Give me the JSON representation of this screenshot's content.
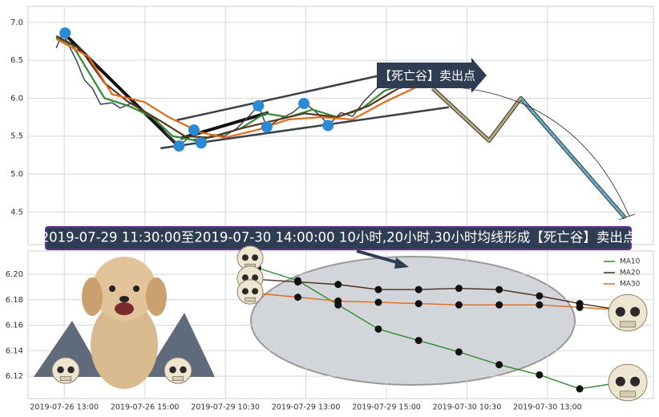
{
  "caption": "2019-07-29 11:30:00至2019-07-30 14:00:00 10小时,20小时,30小时均线形成【死亡谷】卖出点",
  "chart_data": [
    {
      "type": "line",
      "annotation": "【死亡谷】卖出点",
      "xlim": [
        -0.9,
        14.63
      ],
      "ylim": [
        4.07,
        7.21
      ],
      "yticks": [
        4.5,
        {
          "value": 5,
          "label": "5.0"
        },
        5.5,
        {
          "value": 6,
          "label": "6.0"
        },
        6.5,
        {
          "value": 7,
          "label": "7.0"
        }
      ],
      "grid": true,
      "series": [
        {
          "color": "#3b4454",
          "x": [
            -0.2,
            -0.04,
            0.1,
            0.3,
            0.5,
            0.7,
            0.9,
            1.19,
            1.39,
            1.69,
            1.99,
            2.29,
            2.59,
            2.83,
            3.08,
            3.38,
            3.68,
            3.98,
            4.28,
            4.58,
            4.82,
            5.03,
            5.37,
            5.67,
            5.97,
            6.27,
            6.57,
            6.87,
            7.16,
            7.46,
            7.76,
            8.06,
            8.36,
            8.66,
            8.96,
            9.25
          ],
          "values": [
            6.66,
            6.87,
            6.71,
            6.5,
            6.24,
            6.13,
            5.92,
            5.94,
            5.87,
            5.94,
            5.81,
            5.71,
            5.5,
            5.37,
            5.47,
            5.41,
            5.52,
            5.5,
            5.6,
            5.76,
            5.9,
            5.62,
            5.73,
            5.81,
            5.94,
            5.81,
            5.65,
            5.81,
            5.76,
            5.97,
            6.13,
            6.18,
            6.13,
            6.24,
            6.24,
            6.08
          ]
        },
        {
          "color": "#2e8b2e",
          "x": [
            -0.2,
            0.2,
            0.6,
            1,
            1.59,
            2.19,
            2.69,
            3.18,
            3.78,
            4.38,
            4.98,
            5.57,
            6.17,
            6.77,
            7.36,
            7.96,
            8.56,
            9.15
          ],
          "values": [
            6.8,
            6.7,
            6.35,
            6,
            5.9,
            5.75,
            5.5,
            5.45,
            5.5,
            5.6,
            5.8,
            5.75,
            5.85,
            5.75,
            5.85,
            6.1,
            6.2,
            6.15
          ]
        },
        {
          "color": "#5a3520",
          "x": [
            -0.2,
            0.4,
            1,
            1.59,
            2.39,
            2.99,
            3.58,
            4.38,
            5.17,
            5.97,
            6.77,
            7.56,
            8.36,
            9.15
          ],
          "values": [
            6.82,
            6.65,
            6.2,
            5.95,
            5.7,
            5.5,
            5.48,
            5.6,
            5.7,
            5.8,
            5.75,
            5.9,
            6.15,
            6.18
          ]
        },
        {
          "color": "#e06b1a",
          "x": [
            -0.2,
            0.6,
            1.19,
            1.99,
            2.59,
            3.38,
            3.98,
            4.78,
            5.57,
            6.37,
            7.16,
            7.96,
            8.76,
            9.45
          ],
          "values": [
            6.78,
            6.55,
            6.05,
            5.95,
            5.75,
            5.55,
            5.48,
            5.58,
            5.72,
            5.75,
            5.72,
            5.95,
            6.15,
            6.15
          ]
        }
      ],
      "points": {
        "color": "#2a8ad4",
        "x": [
          0.02,
          3.22,
          2.85,
          3.4,
          4.82,
          5.03,
          5.95,
          6.55
        ],
        "values": [
          6.86,
          5.58,
          5.37,
          5.41,
          5.9,
          5.62,
          5.93,
          5.64
        ]
      },
      "trend_lines": [
        {
          "color": "#111111",
          "x": [
            -0.04,
            2.83
          ],
          "values": [
            6.87,
            5.37
          ]
        },
        {
          "color": "#111111",
          "x": [
            2.89,
            5.07
          ],
          "values": [
            5.47,
            5.81
          ]
        },
        {
          "color": "#3a3f4a",
          "x": [
            2.39,
            9.55
          ],
          "values": [
            5.34,
            5.88
          ]
        },
        {
          "color": "#3a3f4a",
          "x": [
            2.79,
            7.76
          ],
          "values": [
            5.71,
            6.29
          ]
        }
      ],
      "projection": {
        "color": "#b8a878",
        "x": [
          9.15,
          10.55,
          11.34,
          13.93
        ],
        "values": [
          6.13,
          5.44,
          6,
          4.42
        ]
      }
    },
    {
      "type": "line",
      "xlim": [
        -0.9,
        14.63
      ],
      "ylim": [
        6.1024,
        6.2183
      ],
      "yticks": [
        6.12,
        6.14,
        6.16,
        6.18,
        {
          "value": 6.2,
          "label": "6.20"
        }
      ],
      "xticks": [
        {
          "value": 0,
          "label": "2019-07-26 13:00"
        },
        {
          "value": 2,
          "label": "2019-07-26 15:00"
        },
        {
          "value": 4,
          "label": "2019-07-29 10:30"
        },
        {
          "value": 6,
          "label": "2019-07-29 13:00"
        },
        {
          "value": 8,
          "label": "2019-07-29 15:00"
        },
        {
          "value": 10,
          "label": "2019-07-30 10:30"
        },
        {
          "value": 12,
          "label": "2019-07-30 13:00"
        }
      ],
      "grid": true,
      "legend": "upper right",
      "x": [
        4.8,
        5.8,
        6.8,
        7.8,
        8.8,
        9.8,
        10.8,
        11.8,
        12.8,
        13.8
      ],
      "series": [
        {
          "name": "MA10",
          "color": "#2e8b2e",
          "values": [
            6.205,
            6.195,
            6.176,
            6.157,
            6.148,
            6.139,
            6.129,
            6.121,
            6.11,
            6.115
          ]
        },
        {
          "name": "MA20",
          "color": "#4a2a18",
          "values": [
            6.196,
            6.194,
            6.192,
            6.188,
            6.188,
            6.189,
            6.188,
            6.183,
            6.177,
            6.172
          ]
        },
        {
          "name": "MA30",
          "color": "#e06b1a",
          "values": [
            6.185,
            6.182,
            6.179,
            6.178,
            6.177,
            6.176,
            6.176,
            6.176,
            6.174,
            6.172
          ]
        }
      ]
    }
  ]
}
